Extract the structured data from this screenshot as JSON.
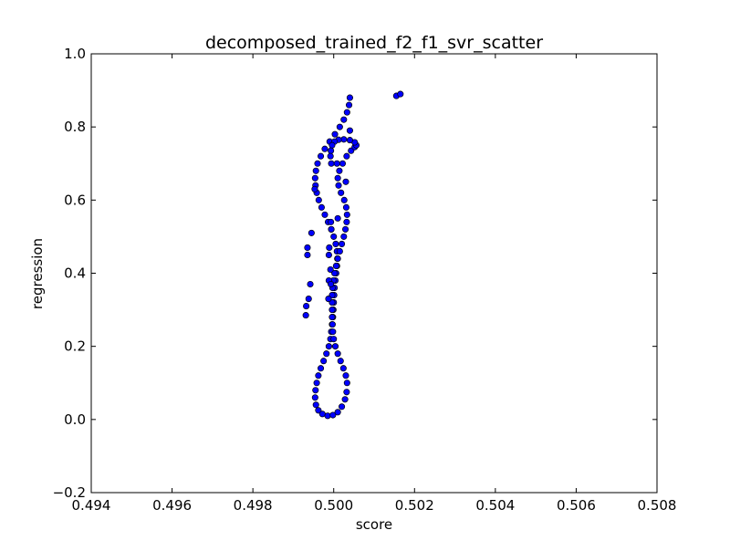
{
  "chart_data": {
    "type": "scatter",
    "title": "decomposed_trained_f2_f1_svr_scatter",
    "xlabel": "score",
    "ylabel": "regression",
    "xlim": [
      0.494,
      0.508
    ],
    "ylim": [
      -0.2,
      1.0
    ],
    "xticks": [
      0.494,
      0.496,
      0.498,
      0.5,
      0.502,
      0.504,
      0.506,
      0.508
    ],
    "xtick_labels": [
      "0.494",
      "0.496",
      "0.498",
      "0.500",
      "0.502",
      "0.504",
      "0.506",
      "0.508"
    ],
    "yticks": [
      -0.2,
      0.0,
      0.2,
      0.4,
      0.6,
      0.8,
      1.0
    ],
    "ytick_labels": [
      "−0.2",
      "0.0",
      "0.2",
      "0.4",
      "0.6",
      "0.8",
      "1.0"
    ],
    "grid": false,
    "legend": "none",
    "marker_color": "#0000ff",
    "marker_edge_color": "#000000",
    "points": [
      {
        "x": 0.5004,
        "y": 0.88
      },
      {
        "x": 0.50038,
        "y": 0.86
      },
      {
        "x": 0.50033,
        "y": 0.84
      },
      {
        "x": 0.50025,
        "y": 0.82
      },
      {
        "x": 0.50015,
        "y": 0.8
      },
      {
        "x": 0.50003,
        "y": 0.78
      },
      {
        "x": 0.4999,
        "y": 0.76
      },
      {
        "x": 0.49978,
        "y": 0.74
      },
      {
        "x": 0.49968,
        "y": 0.72
      },
      {
        "x": 0.4996,
        "y": 0.7
      },
      {
        "x": 0.49956,
        "y": 0.68
      },
      {
        "x": 0.49954,
        "y": 0.66
      },
      {
        "x": 0.49955,
        "y": 0.64
      },
      {
        "x": 0.49958,
        "y": 0.62
      },
      {
        "x": 0.49963,
        "y": 0.6
      },
      {
        "x": 0.4997,
        "y": 0.58
      },
      {
        "x": 0.49978,
        "y": 0.56
      },
      {
        "x": 0.49986,
        "y": 0.54
      },
      {
        "x": 0.49994,
        "y": 0.52
      },
      {
        "x": 0.5,
        "y": 0.5
      },
      {
        "x": 0.50005,
        "y": 0.48
      },
      {
        "x": 0.50008,
        "y": 0.46
      },
      {
        "x": 0.50009,
        "y": 0.44
      },
      {
        "x": 0.50008,
        "y": 0.42
      },
      {
        "x": 0.50006,
        "y": 0.4
      },
      {
        "x": 0.50004,
        "y": 0.38
      },
      {
        "x": 0.50002,
        "y": 0.36
      },
      {
        "x": 0.50001,
        "y": 0.34
      },
      {
        "x": 0.5,
        "y": 0.32
      },
      {
        "x": 0.49999,
        "y": 0.3
      },
      {
        "x": 0.49998,
        "y": 0.28
      },
      {
        "x": 0.49996,
        "y": 0.26
      },
      {
        "x": 0.49994,
        "y": 0.24
      },
      {
        "x": 0.49992,
        "y": 0.22
      },
      {
        "x": 0.49988,
        "y": 0.2
      },
      {
        "x": 0.49982,
        "y": 0.18
      },
      {
        "x": 0.49975,
        "y": 0.16
      },
      {
        "x": 0.49968,
        "y": 0.14
      },
      {
        "x": 0.49962,
        "y": 0.12
      },
      {
        "x": 0.49958,
        "y": 0.1
      },
      {
        "x": 0.49955,
        "y": 0.08
      },
      {
        "x": 0.49954,
        "y": 0.06
      },
      {
        "x": 0.49956,
        "y": 0.04
      },
      {
        "x": 0.49962,
        "y": 0.025
      },
      {
        "x": 0.49972,
        "y": 0.015
      },
      {
        "x": 0.49985,
        "y": 0.01
      },
      {
        "x": 0.49998,
        "y": 0.012
      },
      {
        "x": 0.5001,
        "y": 0.02
      },
      {
        "x": 0.5002,
        "y": 0.035
      },
      {
        "x": 0.50028,
        "y": 0.055
      },
      {
        "x": 0.50032,
        "y": 0.075
      },
      {
        "x": 0.50033,
        "y": 0.1
      },
      {
        "x": 0.5003,
        "y": 0.12
      },
      {
        "x": 0.50024,
        "y": 0.14
      },
      {
        "x": 0.50017,
        "y": 0.16
      },
      {
        "x": 0.5001,
        "y": 0.18
      },
      {
        "x": 0.50004,
        "y": 0.2
      },
      {
        "x": 0.5,
        "y": 0.22
      },
      {
        "x": 0.49998,
        "y": 0.24
      },
      {
        "x": 0.49997,
        "y": 0.26
      },
      {
        "x": 0.49996,
        "y": 0.28
      },
      {
        "x": 0.49996,
        "y": 0.3
      },
      {
        "x": 0.49996,
        "y": 0.32
      },
      {
        "x": 0.49996,
        "y": 0.34
      },
      {
        "x": 0.49997,
        "y": 0.36
      },
      {
        "x": 0.49999,
        "y": 0.38
      },
      {
        "x": 0.50002,
        "y": 0.4
      },
      {
        "x": 0.50006,
        "y": 0.42
      },
      {
        "x": 0.5001,
        "y": 0.44
      },
      {
        "x": 0.50015,
        "y": 0.46
      },
      {
        "x": 0.5002,
        "y": 0.48
      },
      {
        "x": 0.50025,
        "y": 0.5
      },
      {
        "x": 0.50029,
        "y": 0.52
      },
      {
        "x": 0.50032,
        "y": 0.54
      },
      {
        "x": 0.50033,
        "y": 0.56
      },
      {
        "x": 0.50031,
        "y": 0.58
      },
      {
        "x": 0.50026,
        "y": 0.6
      },
      {
        "x": 0.50018,
        "y": 0.62
      },
      {
        "x": 0.50012,
        "y": 0.64
      },
      {
        "x": 0.5001,
        "y": 0.66
      },
      {
        "x": 0.50014,
        "y": 0.68
      },
      {
        "x": 0.50022,
        "y": 0.7
      },
      {
        "x": 0.50032,
        "y": 0.72
      },
      {
        "x": 0.50043,
        "y": 0.735
      },
      {
        "x": 0.50052,
        "y": 0.745
      },
      {
        "x": 0.50056,
        "y": 0.75
      },
      {
        "x": 0.50052,
        "y": 0.758
      },
      {
        "x": 0.5004,
        "y": 0.764
      },
      {
        "x": 0.50025,
        "y": 0.766
      },
      {
        "x": 0.50012,
        "y": 0.765
      },
      {
        "x": 0.50002,
        "y": 0.76
      },
      {
        "x": 0.49996,
        "y": 0.75
      },
      {
        "x": 0.49993,
        "y": 0.735
      },
      {
        "x": 0.49992,
        "y": 0.72
      },
      {
        "x": 0.49994,
        "y": 0.7
      },
      {
        "x": 0.49993,
        "y": 0.54
      },
      {
        "x": 0.49994,
        "y": 0.52
      },
      {
        "x": 0.49989,
        "y": 0.47
      },
      {
        "x": 0.49988,
        "y": 0.45
      },
      {
        "x": 0.49992,
        "y": 0.41
      },
      {
        "x": 0.49988,
        "y": 0.38
      },
      {
        "x": 0.49987,
        "y": 0.33
      },
      {
        "x": 0.49993,
        "y": 0.37
      },
      {
        "x": 0.49932,
        "y": 0.31
      },
      {
        "x": 0.49931,
        "y": 0.285
      },
      {
        "x": 0.49938,
        "y": 0.33
      },
      {
        "x": 0.49942,
        "y": 0.37
      },
      {
        "x": 0.49935,
        "y": 0.47
      },
      {
        "x": 0.49935,
        "y": 0.45
      },
      {
        "x": 0.49945,
        "y": 0.51
      },
      {
        "x": 0.49953,
        "y": 0.63
      },
      {
        "x": 0.5001,
        "y": 0.55
      },
      {
        "x": 0.5003,
        "y": 0.65
      },
      {
        "x": 0.5004,
        "y": 0.79
      },
      {
        "x": 0.50008,
        "y": 0.7
      },
      {
        "x": 0.50155,
        "y": 0.885
      },
      {
        "x": 0.50165,
        "y": 0.89
      }
    ]
  }
}
